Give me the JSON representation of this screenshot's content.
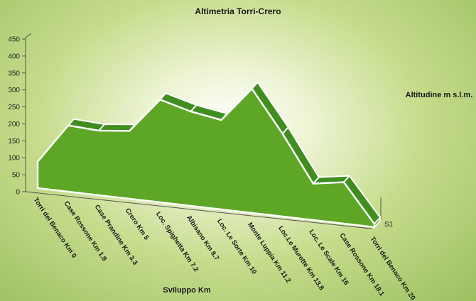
{
  "chart_data": {
    "type": "area",
    "title": "Altimetria Torri-Crero",
    "xlabel": "Sviluppo Km",
    "ylabel": "Altitudine m s.l.m.",
    "ylim": [
      0,
      450
    ],
    "yticks": [
      0,
      50,
      100,
      150,
      200,
      250,
      300,
      350,
      400,
      450
    ],
    "categories": [
      "Torri del Benaco Km 0",
      "Case Rossone Km 1.9",
      "Case Prandine Km 3.3",
      "Crero Km 5",
      "Loc. Spighetta Km 7.2",
      "Albisano Km 8.7",
      "Loc. Le Sorte Km 10",
      "Monte Luppia Km 11.2",
      "Loc.Le Murette Km 13.8",
      "Loc. Le Scale Km 16",
      "Case Rossone Km 18.1",
      "Torri del Benaco Km 20"
    ],
    "series": [
      {
        "name": "S1",
        "values": [
          80,
          200,
          195,
          205,
          310,
          285,
          270,
          375,
          250,
          110,
          125,
          10
        ]
      }
    ],
    "colors": {
      "fill": "#5ea726",
      "top": "#3f8e1f",
      "edge": "#ffffff"
    },
    "grid": false,
    "projection": "3d"
  }
}
